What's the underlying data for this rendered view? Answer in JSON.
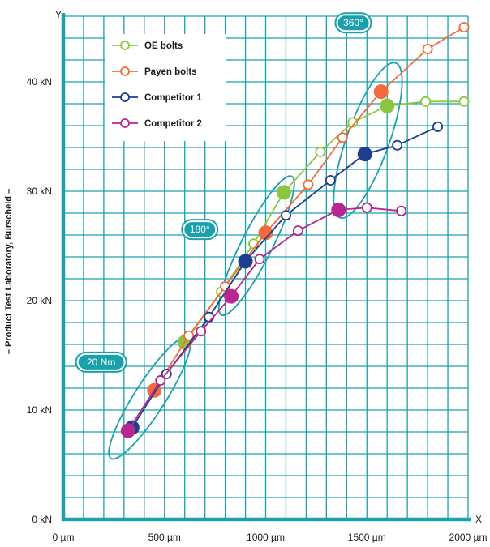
{
  "chart_data": {
    "type": "line",
    "xlabel": "X",
    "ylabel": "Y",
    "side_label": "– Product Test Laboratory, Burscheid –",
    "xlim": [
      0,
      2000
    ],
    "ylim": [
      0,
      46
    ],
    "x_ticks": [
      {
        "value": 0,
        "label": "0 µm"
      },
      {
        "value": 500,
        "label": "500 µm"
      },
      {
        "value": 1000,
        "label": "1000 µm"
      },
      {
        "value": 1500,
        "label": "1500 µm"
      },
      {
        "value": 2000,
        "label": "2000 µm"
      }
    ],
    "y_ticks": [
      {
        "value": 0,
        "label": "0 kN"
      },
      {
        "value": 10,
        "label": "10 kN"
      },
      {
        "value": 20,
        "label": "20 kN"
      },
      {
        "value": 30,
        "label": "30 kN"
      },
      {
        "value": 40,
        "label": "40 kN"
      }
    ],
    "grid": true,
    "legend_position": "top-left",
    "series": [
      {
        "name": "OE bolts",
        "color": "#8cc63f",
        "points": [
          [
            600,
            16.2
          ],
          [
            780,
            20.8
          ],
          [
            940,
            25.2
          ],
          [
            1090,
            29.9
          ],
          [
            1270,
            33.6
          ],
          [
            1430,
            36.3
          ],
          [
            1600,
            37.8
          ],
          [
            1790,
            38.2
          ],
          [
            1980,
            38.2
          ]
        ],
        "highlighted": [
          [
            600,
            16.2
          ],
          [
            1090,
            29.9
          ],
          [
            1600,
            37.8
          ]
        ]
      },
      {
        "name": "Payen bolts",
        "color": "#f26b3a",
        "points": [
          [
            450,
            11.8
          ],
          [
            620,
            16.8
          ],
          [
            800,
            21.3
          ],
          [
            1000,
            26.2
          ],
          [
            1210,
            30.6
          ],
          [
            1380,
            34.9
          ],
          [
            1570,
            39.1
          ],
          [
            1800,
            43.0
          ],
          [
            1980,
            45.0
          ]
        ],
        "highlighted": [
          [
            450,
            11.8
          ],
          [
            1000,
            26.2
          ],
          [
            1570,
            39.1
          ]
        ]
      },
      {
        "name": "Competitor 1",
        "color": "#1f3d8f",
        "points": [
          [
            340,
            8.4
          ],
          [
            510,
            13.3
          ],
          [
            720,
            18.5
          ],
          [
            900,
            23.6
          ],
          [
            1100,
            27.8
          ],
          [
            1320,
            31.0
          ],
          [
            1490,
            33.4
          ],
          [
            1650,
            34.2
          ],
          [
            1850,
            35.9
          ]
        ],
        "highlighted": [
          [
            340,
            8.4
          ],
          [
            900,
            23.6
          ],
          [
            1490,
            33.4
          ]
        ]
      },
      {
        "name": "Competitor 2",
        "color": "#b8278f",
        "points": [
          [
            320,
            8.1
          ],
          [
            480,
            12.7
          ],
          [
            680,
            17.2
          ],
          [
            830,
            20.4
          ],
          [
            970,
            23.8
          ],
          [
            1160,
            26.4
          ],
          [
            1360,
            28.3
          ],
          [
            1500,
            28.5
          ],
          [
            1670,
            28.2
          ]
        ],
        "highlighted": [
          [
            320,
            8.1
          ],
          [
            830,
            20.4
          ],
          [
            1360,
            28.3
          ]
        ]
      }
    ],
    "annotations": [
      {
        "label": "20 Nm",
        "color": "#1ba1ac"
      },
      {
        "label": "180°",
        "color": "#1ba1ac"
      },
      {
        "label": "360°",
        "color": "#1ba1ac"
      }
    ],
    "colors": {
      "grid": "#1ba1ac",
      "axis": "#1ba1ac"
    }
  }
}
